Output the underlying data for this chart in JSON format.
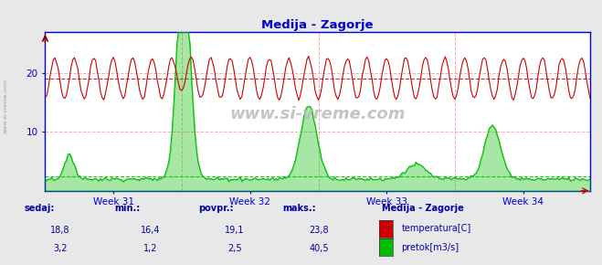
{
  "title": "Medija - Zagorje",
  "title_color": "#0000cc",
  "bg_color": "#e8e8e8",
  "plot_bg_color": "#ffffff",
  "watermark": "www.si-vreme.com",
  "week_labels": [
    "Week 31",
    "Week 32",
    "Week 33",
    "Week 34"
  ],
  "ylim": [
    0,
    27
  ],
  "yticks": [
    10,
    20
  ],
  "temp_color": "#cc0000",
  "flow_color": "#00bb00",
  "avg_temp": 19.1,
  "avg_flow": 2.5,
  "n_points": 336,
  "legend_title": "Medija - Zagorje",
  "legend_items": [
    {
      "label": "temperatura[C]",
      "color": "#cc0000"
    },
    {
      "label": "pretok[m3/s]",
      "color": "#00bb00"
    }
  ],
  "stats": {
    "temp": {
      "sedaj": "18,8",
      "min": "16,4",
      "povpr": "19,1",
      "maks": "23,8"
    },
    "flow": {
      "sedaj": "3,2",
      "min": "1,2",
      "povpr": "2,5",
      "maks": "40,5"
    }
  },
  "stat_labels": [
    "sedaj:",
    "min.:",
    "povpr.:",
    "maks.:"
  ],
  "stat_color": "#0000aa",
  "axis_color": "#0000cc",
  "grid_color": "#ffaaaa",
  "vgrid_color": "#ffaaaa"
}
